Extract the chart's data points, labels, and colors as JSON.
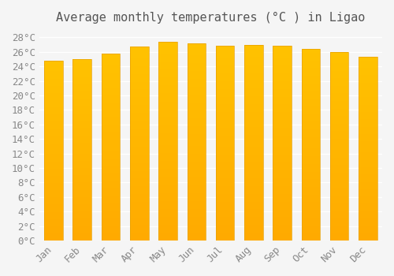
{
  "title": "Average monthly temperatures (°C ) in Ligao",
  "months": [
    "Jan",
    "Feb",
    "Mar",
    "Apr",
    "May",
    "Jun",
    "Jul",
    "Aug",
    "Sep",
    "Oct",
    "Nov",
    "Dec"
  ],
  "values": [
    24.8,
    25.0,
    25.7,
    26.7,
    27.4,
    27.2,
    26.8,
    26.9,
    26.8,
    26.4,
    26.0,
    25.3
  ],
  "bar_color_top": "#FFC200",
  "bar_color_bottom": "#FFAA00",
  "background_color": "#f5f5f5",
  "grid_color": "#ffffff",
  "ylim": [
    0,
    29
  ],
  "yticks": [
    0,
    2,
    4,
    6,
    8,
    10,
    12,
    14,
    16,
    18,
    20,
    22,
    24,
    26,
    28
  ],
  "title_fontsize": 11,
  "tick_fontsize": 9,
  "bar_edge_color": "#E8A000"
}
